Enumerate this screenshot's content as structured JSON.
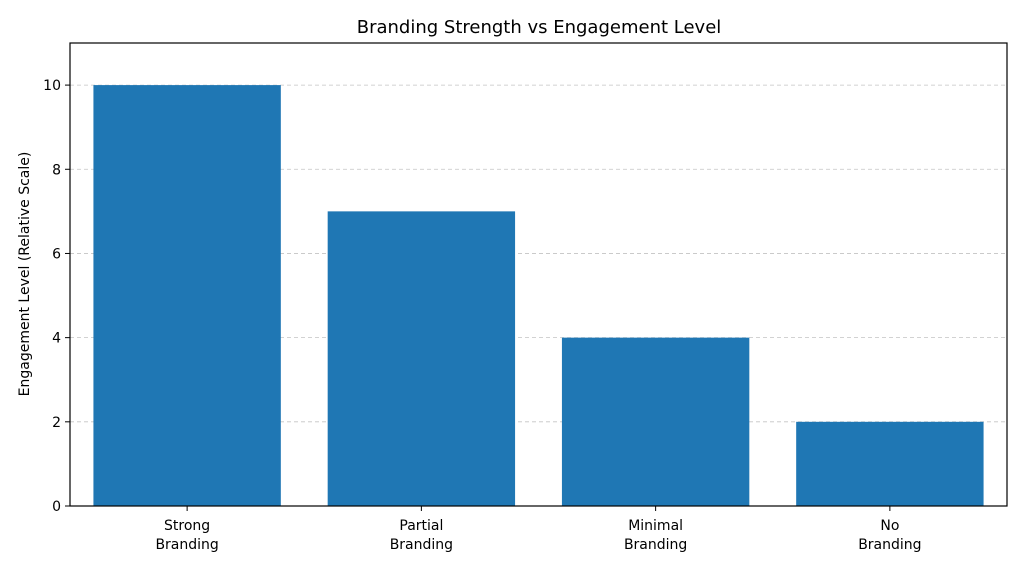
{
  "chart_data": {
    "type": "bar",
    "title": "Branding Strength vs Engagement Level",
    "xlabel": "",
    "ylabel": "Engagement Level (Relative Scale)",
    "categories": [
      [
        "Strong",
        "Branding"
      ],
      [
        "Partial",
        "Branding"
      ],
      [
        "Minimal",
        "Branding"
      ],
      [
        "No",
        "Branding"
      ]
    ],
    "values": [
      10,
      7,
      4,
      2
    ],
    "ylim": [
      0,
      11
    ],
    "yticks": [
      0,
      2,
      4,
      6,
      8,
      10
    ],
    "grid": "y-dashed",
    "bar_color": "#1f77b4"
  }
}
